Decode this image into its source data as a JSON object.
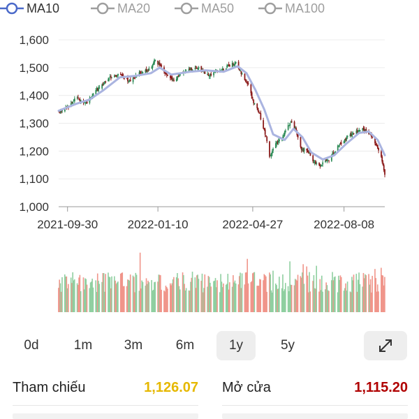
{
  "legend": [
    {
      "label": "MA10",
      "active": true,
      "color": "#4a69c9"
    },
    {
      "label": "MA20",
      "active": false,
      "color": "#9e9e9e"
    },
    {
      "label": "MA50",
      "active": false,
      "color": "#9e9e9e"
    },
    {
      "label": "MA100",
      "active": false,
      "color": "#9e9e9e"
    }
  ],
  "ranges": [
    "0d",
    "1m",
    "3m",
    "6m",
    "1y",
    "5y"
  ],
  "active_range": "1y",
  "expand_icon": "expand-arrows-icon",
  "stats": {
    "left_label": "Tham chiếu",
    "left_value": "1,126.07",
    "left_color": "#e6b800",
    "right_label": "Mở cửa",
    "right_value": "1,115.20",
    "right_color": "#b00000"
  },
  "chart_data": {
    "type": "candlestick",
    "y_ticks": [
      "1,600",
      "1,500",
      "1,400",
      "1,300",
      "1,200",
      "1,100",
      "1,000"
    ],
    "y_range": [
      1000,
      1600
    ],
    "x_tick_labels": [
      "2021-09-30",
      "2022-01-10",
      "2022-04-27",
      "2022-08-08"
    ],
    "x_ticks": [
      {
        "label": "2021-09-30",
        "date": "2021-09-30"
      },
      {
        "label": "2022-01-10",
        "date": "2022-01-10"
      },
      {
        "label": "2022-04-27",
        "date": "2022-04-27"
      },
      {
        "label": "2022-08-08",
        "date": "2022-08-08"
      }
    ],
    "x_range": [
      "2021-09-20",
      "2022-09-23"
    ],
    "series": [
      {
        "name": "MA10",
        "color": "#aab4e0"
      }
    ],
    "up_color": "#2e8b57",
    "down_color": "#8b1a1a",
    "volume_up_color": "#8fcfa0",
    "volume_down_color": "#f0958a",
    "close_path": [
      [
        "2021-09-20",
        1340
      ],
      [
        "2021-10-01",
        1360
      ],
      [
        "2021-10-10",
        1390
      ],
      [
        "2021-10-22",
        1375
      ],
      [
        "2021-11-05",
        1430
      ],
      [
        "2021-11-20",
        1470
      ],
      [
        "2021-11-28",
        1480
      ],
      [
        "2021-12-08",
        1450
      ],
      [
        "2021-12-20",
        1480
      ],
      [
        "2022-01-02",
        1495
      ],
      [
        "2022-01-06",
        1525
      ],
      [
        "2022-01-12",
        1510
      ],
      [
        "2022-01-20",
        1470
      ],
      [
        "2022-01-28",
        1455
      ],
      [
        "2022-02-10",
        1490
      ],
      [
        "2022-02-25",
        1500
      ],
      [
        "2022-03-08",
        1470
      ],
      [
        "2022-03-20",
        1490
      ],
      [
        "2022-03-30",
        1505
      ],
      [
        "2022-04-08",
        1520
      ],
      [
        "2022-04-14",
        1480
      ],
      [
        "2022-04-22",
        1440
      ],
      [
        "2022-04-27",
        1380
      ],
      [
        "2022-05-05",
        1330
      ],
      [
        "2022-05-12",
        1250
      ],
      [
        "2022-05-16",
        1180
      ],
      [
        "2022-05-22",
        1220
      ],
      [
        "2022-06-01",
        1260
      ],
      [
        "2022-06-09",
        1310
      ],
      [
        "2022-06-14",
        1280
      ],
      [
        "2022-06-20",
        1210
      ],
      [
        "2022-06-28",
        1200
      ],
      [
        "2022-07-05",
        1160
      ],
      [
        "2022-07-12",
        1150
      ],
      [
        "2022-07-22",
        1170
      ],
      [
        "2022-08-02",
        1220
      ],
      [
        "2022-08-12",
        1250
      ],
      [
        "2022-08-22",
        1270
      ],
      [
        "2022-08-30",
        1280
      ],
      [
        "2022-09-06",
        1260
      ],
      [
        "2022-09-12",
        1230
      ],
      [
        "2022-09-17",
        1200
      ],
      [
        "2022-09-21",
        1150
      ],
      [
        "2022-09-23",
        1110
      ]
    ],
    "ma10_path": [
      [
        "2021-09-20",
        1345
      ],
      [
        "2021-10-10",
        1370
      ],
      [
        "2021-10-25",
        1385
      ],
      [
        "2021-11-10",
        1420
      ],
      [
        "2021-11-28",
        1465
      ],
      [
        "2021-12-15",
        1470
      ],
      [
        "2022-01-02",
        1480
      ],
      [
        "2022-01-12",
        1500
      ],
      [
        "2022-01-25",
        1475
      ],
      [
        "2022-02-15",
        1485
      ],
      [
        "2022-03-05",
        1490
      ],
      [
        "2022-03-25",
        1485
      ],
      [
        "2022-04-10",
        1505
      ],
      [
        "2022-04-20",
        1480
      ],
      [
        "2022-04-30",
        1420
      ],
      [
        "2022-05-10",
        1350
      ],
      [
        "2022-05-20",
        1260
      ],
      [
        "2022-06-02",
        1240
      ],
      [
        "2022-06-12",
        1280
      ],
      [
        "2022-06-22",
        1250
      ],
      [
        "2022-07-02",
        1195
      ],
      [
        "2022-07-15",
        1170
      ],
      [
        "2022-07-28",
        1185
      ],
      [
        "2022-08-10",
        1225
      ],
      [
        "2022-08-25",
        1265
      ],
      [
        "2022-09-05",
        1270
      ],
      [
        "2022-09-15",
        1240
      ],
      [
        "2022-09-23",
        1185
      ]
    ]
  }
}
